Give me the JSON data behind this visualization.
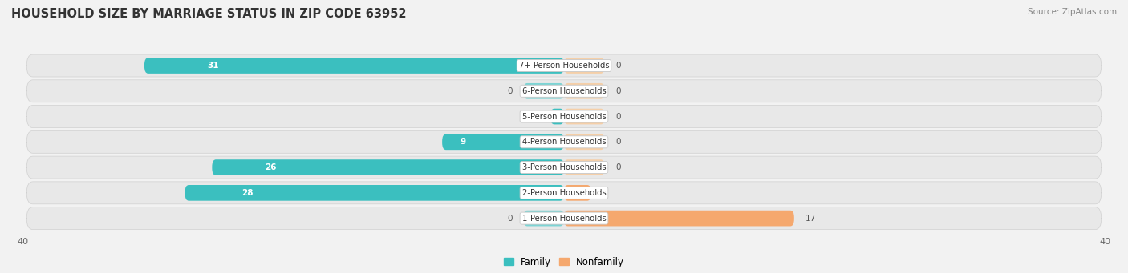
{
  "title": "HOUSEHOLD SIZE BY MARRIAGE STATUS IN ZIP CODE 63952",
  "source": "Source: ZipAtlas.com",
  "categories": [
    "1-Person Households",
    "2-Person Households",
    "3-Person Households",
    "4-Person Households",
    "5-Person Households",
    "6-Person Households",
    "7+ Person Households"
  ],
  "family_values": [
    0,
    28,
    26,
    9,
    1,
    0,
    31
  ],
  "nonfamily_values": [
    17,
    2,
    0,
    0,
    0,
    0,
    0
  ],
  "family_color": "#3BBFBF",
  "nonfamily_color": "#F5A86E",
  "nonfamily_stub_color": "#F5CFA8",
  "family_stub_color": "#7DD4D4",
  "xlim": 40,
  "background_color": "#f2f2f2",
  "row_bg_color": "#e4e4e4",
  "title_fontsize": 10.5,
  "legend_family": "Family",
  "legend_nonfamily": "Nonfamily"
}
